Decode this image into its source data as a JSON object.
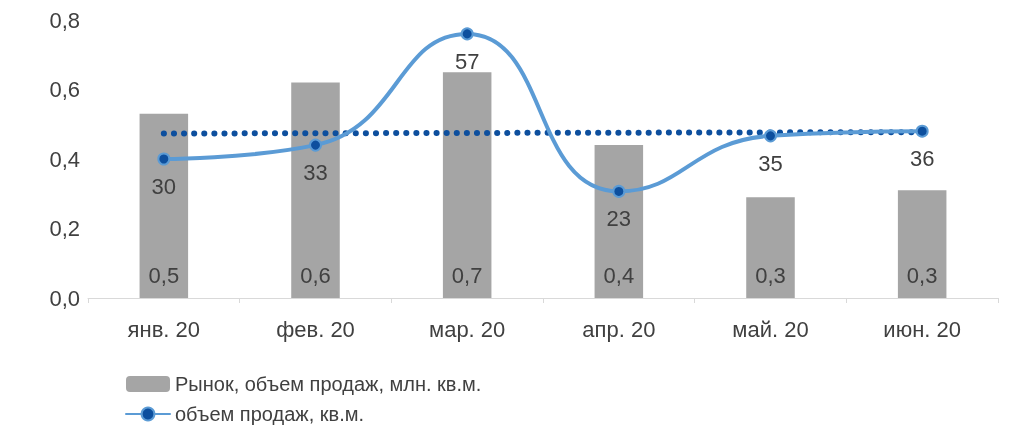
{
  "chart_data": {
    "type": "bar",
    "categories": [
      "янв. 20",
      "фев. 20",
      "мар. 20",
      "апр. 20",
      "май. 20",
      "июн. 20"
    ],
    "ylim": [
      0,
      0.8
    ],
    "yticks": [
      {
        "value": 0,
        "label": "0,0"
      },
      {
        "value": 0.2,
        "label": "0,2"
      },
      {
        "value": 0.4,
        "label": "0,4"
      },
      {
        "value": 0.6,
        "label": "0,6"
      },
      {
        "value": 0.8,
        "label": "0,8"
      }
    ],
    "grid": false,
    "legend": "bottom left",
    "marker": "circle",
    "series": [
      {
        "name": "Рынок, объем продаж, млн. кв.м.",
        "color": "#a5a5a5",
        "values": [
          0.53,
          0.62,
          0.65,
          0.44,
          0.29,
          0.31
        ],
        "value_labels": [
          "0,5",
          "0,6",
          "0,7",
          "0,4",
          "0,3",
          "0,3"
        ]
      },
      {
        "type": "line",
        "axis": "y2",
        "name": "объем продаж, кв.м.",
        "color": "#5b9bd5",
        "values": [
          30,
          33,
          57,
          23,
          35,
          36
        ],
        "data_labels": true
      },
      {
        "type": "line",
        "axis": "y2",
        "color": "#0d4f9e",
        "x": [
          "янв. 20",
          "июн. 20"
        ],
        "values": [
          35.5,
          35.8
        ],
        "line_style": "dotted",
        "marker": "none"
      }
    ]
  }
}
